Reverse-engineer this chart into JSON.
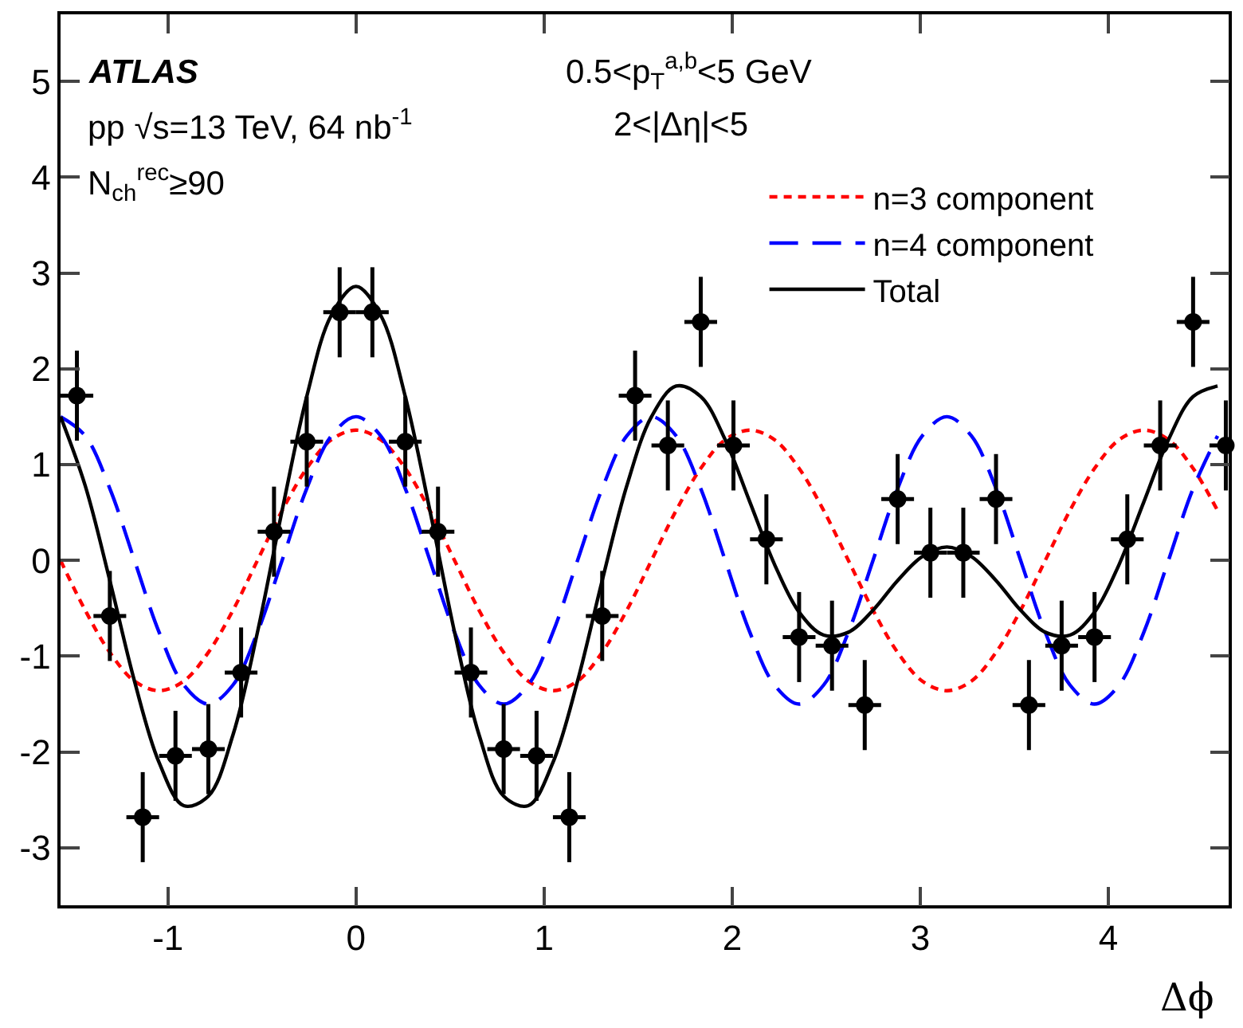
{
  "chart_data": {
    "type": "scatter",
    "xlabel": "Δϕ",
    "annotations": [
      "ATLAS",
      "pp √s=13 TeV, 64 nb$^{-1}$",
      "N$_{ch}$$^{rec}$≥90",
      "0.5<p$_{T}$$^{a,b}$<5 GeV",
      "2<|Δη|<5"
    ],
    "xlim": [
      -1.571,
      4.64
    ],
    "ylim": [
      -3.6,
      5.7
    ],
    "xticks": [
      -1,
      0,
      1,
      2,
      3,
      4
    ],
    "yticks": [
      -3,
      -2,
      -1,
      0,
      1,
      2,
      3,
      4,
      5
    ],
    "legend": "top right",
    "series": [
      {
        "type": "line",
        "name": "n=3 component",
        "color": "#ff0000",
        "line_style": "dotted",
        "marker": "none",
        "x": [
          -1.571,
          -1.44,
          -1.309,
          -1.178,
          -1.047,
          -0.916,
          -0.785,
          -0.654,
          -0.524,
          -0.393,
          -0.262,
          -0.131,
          0,
          0.131,
          0.262,
          0.393,
          0.524,
          0.654,
          0.785,
          0.916,
          1.047,
          1.178,
          1.309,
          1.44,
          1.571,
          1.702,
          1.833,
          1.963,
          2.094,
          2.225,
          2.356,
          2.487,
          2.618,
          2.749,
          2.88,
          3.011,
          3.142,
          3.272,
          3.403,
          3.534,
          3.665,
          3.796,
          3.927,
          4.058,
          4.189,
          4.32,
          4.451,
          4.581
        ],
        "values": [
          0,
          -0.52,
          -0.96,
          -1.26,
          -1.36,
          -1.26,
          -0.96,
          -0.52,
          0,
          0.52,
          0.96,
          1.26,
          1.36,
          1.26,
          0.96,
          0.52,
          0,
          -0.52,
          -0.96,
          -1.26,
          -1.36,
          -1.26,
          -0.96,
          -0.52,
          0,
          0.52,
          0.96,
          1.26,
          1.36,
          1.26,
          0.96,
          0.52,
          0,
          -0.52,
          -0.96,
          -1.26,
          -1.36,
          -1.26,
          -0.96,
          -0.52,
          0,
          0.52,
          0.96,
          1.26,
          1.36,
          1.26,
          0.96,
          0.52
        ]
      },
      {
        "type": "line",
        "name": "n=4 component",
        "color": "#0000ff",
        "line_style": "dashed",
        "marker": "none",
        "x": [
          -1.571,
          -1.44,
          -1.309,
          -1.178,
          -1.047,
          -0.916,
          -0.785,
          -0.654,
          -0.524,
          -0.393,
          -0.262,
          -0.131,
          0,
          0.131,
          0.262,
          0.393,
          0.524,
          0.654,
          0.785,
          0.916,
          1.047,
          1.178,
          1.309,
          1.44,
          1.571,
          1.702,
          1.833,
          1.963,
          2.094,
          2.225,
          2.356,
          2.487,
          2.618,
          2.749,
          2.88,
          3.011,
          3.142,
          3.272,
          3.403,
          3.534,
          3.665,
          3.796,
          3.927,
          4.058,
          4.189,
          4.32,
          4.451,
          4.581
        ],
        "values": [
          1.5,
          1.3,
          0.75,
          0,
          -0.75,
          -1.3,
          -1.5,
          -1.3,
          -0.75,
          0,
          0.75,
          1.3,
          1.5,
          1.3,
          0.75,
          0,
          -0.75,
          -1.3,
          -1.5,
          -1.3,
          -0.75,
          0,
          0.75,
          1.3,
          1.5,
          1.3,
          0.75,
          0,
          -0.75,
          -1.3,
          -1.5,
          -1.3,
          -0.75,
          0,
          0.75,
          1.3,
          1.5,
          1.3,
          0.75,
          0,
          -0.75,
          -1.3,
          -1.5,
          -1.3,
          -0.75,
          0,
          0.75,
          1.3
        ]
      },
      {
        "type": "line",
        "name": "Total",
        "color": "#000000",
        "line_style": "solid",
        "marker": "none",
        "x": [
          -1.571,
          -1.44,
          -1.309,
          -1.178,
          -1.047,
          -0.916,
          -0.785,
          -0.654,
          -0.524,
          -0.393,
          -0.262,
          -0.131,
          0,
          0.131,
          0.262,
          0.393,
          0.524,
          0.654,
          0.785,
          0.916,
          1.047,
          1.178,
          1.309,
          1.44,
          1.571,
          1.702,
          1.833,
          1.963,
          2.094,
          2.225,
          2.356,
          2.487,
          2.618,
          2.749,
          2.88,
          3.011,
          3.142,
          3.272,
          3.403,
          3.534,
          3.665,
          3.796,
          3.927,
          4.058,
          4.189,
          4.32,
          4.451,
          4.581
        ],
        "values": [
          1.5,
          0.78,
          -0.21,
          -1.26,
          -2.11,
          -2.56,
          -2.46,
          -1.82,
          -0.75,
          0.52,
          1.71,
          2.56,
          2.86,
          2.56,
          1.71,
          0.52,
          -0.75,
          -1.82,
          -2.46,
          -2.56,
          -2.11,
          -1.26,
          -0.21,
          0.78,
          1.5,
          1.82,
          1.71,
          1.26,
          0.61,
          -0.04,
          -0.54,
          -0.78,
          -0.75,
          -0.52,
          -0.21,
          0.04,
          0.14,
          0.04,
          -0.21,
          -0.52,
          -0.75,
          -0.78,
          -0.54,
          -0.04,
          0.61,
          1.26,
          1.71,
          1.82
        ]
      },
      {
        "color": "#000000",
        "marker": "circle",
        "x": [
          -1.484,
          -1.309,
          -1.134,
          -0.96,
          -0.785,
          -0.611,
          -0.436,
          -0.262,
          -0.087,
          0.087,
          0.262,
          0.436,
          0.611,
          0.785,
          0.96,
          1.134,
          1.309,
          1.484,
          1.658,
          1.833,
          2.007,
          2.182,
          2.356,
          2.531,
          2.705,
          2.88,
          3.054,
          3.229,
          3.403,
          3.578,
          3.752,
          3.927,
          4.101,
          4.276,
          4.451,
          4.625
        ],
        "values": [
          1.72,
          -0.58,
          -2.68,
          -2.04,
          -1.97,
          -1.17,
          0.3,
          1.24,
          2.59,
          2.59,
          1.24,
          0.3,
          -1.17,
          -1.97,
          -2.04,
          -2.68,
          -0.58,
          1.72,
          1.2,
          2.49,
          1.2,
          0.22,
          -0.8,
          -0.89,
          -1.51,
          0.64,
          0.08,
          0.08,
          0.64,
          -1.51,
          -0.89,
          -0.8,
          0.22,
          1.2,
          2.49,
          1.2
        ],
        "errors": [
          0.47,
          0.47,
          0.47,
          0.47,
          0.47,
          0.47,
          0.47,
          0.47,
          0.47,
          0.47,
          0.47,
          0.47,
          0.47,
          0.47,
          0.47,
          0.47,
          0.47,
          0.47,
          0.47,
          0.47,
          0.47,
          0.47,
          0.47,
          0.47,
          0.47,
          0.47,
          0.47,
          0.47,
          0.47,
          0.47,
          0.47,
          0.47,
          0.47,
          0.47,
          0.47,
          0.47
        ],
        "xerrors": [
          0.087,
          0.087,
          0.087,
          0.087,
          0.087,
          0.087,
          0.087,
          0.087,
          0.087,
          0.087,
          0.087,
          0.087,
          0.087,
          0.087,
          0.087,
          0.087,
          0.087,
          0.087,
          0.087,
          0.087,
          0.087,
          0.087,
          0.087,
          0.087,
          0.087,
          0.087,
          0.087,
          0.087,
          0.087,
          0.087,
          0.087,
          0.087,
          0.087,
          0.087,
          0.087,
          [
            4.538,
            4.64
          ]
        ]
      }
    ]
  }
}
